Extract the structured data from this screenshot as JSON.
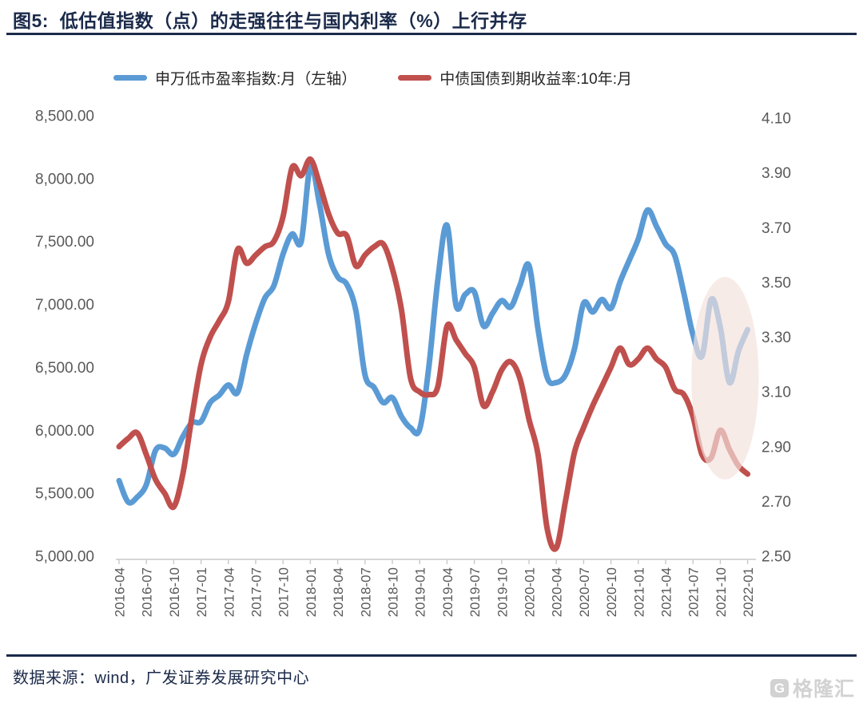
{
  "title": "图5:  低估值指数（点）的走强往往与国内利率（%）上行并存",
  "legend": {
    "items": [
      {
        "label": "申万低市盈率指数:月（左轴）",
        "color": "#5B9BD5"
      },
      {
        "label": "中债国债到期收益率:10年:月",
        "color": "#C0504D"
      }
    ]
  },
  "footer": {
    "text": "数据来源：wind，广发证券发展研究中心"
  },
  "watermark": {
    "logo_letter": "G",
    "text": "格隆汇"
  },
  "colors": {
    "title": "#1b2a4a",
    "rule": "#1b2a4a",
    "axis_label": "#595959",
    "axis_line": "#c9c9c9",
    "index_line": "#5B9BD5",
    "yield_line": "#C0504D",
    "highlight": "#f3e1dd"
  },
  "chart_data": {
    "type": "line",
    "title": "低估值指数（点）的走强往往与国内利率（%）上行并存",
    "x_start": "2016-04",
    "x_frequency": "monthly",
    "x_tick_labels": [
      "2016-04",
      "2016-07",
      "2016-10",
      "2017-01",
      "2017-04",
      "2017-07",
      "2017-10",
      "2018-01",
      "2018-04",
      "2018-07",
      "2018-10",
      "2019-01",
      "2019-04",
      "2019-07",
      "2019-10",
      "2020-01",
      "2020-04",
      "2020-07",
      "2020-10",
      "2021-01",
      "2021-04",
      "2021-07",
      "2021-10",
      "2022-01"
    ],
    "left_axis": {
      "min": 5000,
      "max": 8500,
      "step": 500,
      "tick_labels": [
        "8,500.00",
        "8,000.00",
        "7,500.00",
        "7,000.00",
        "6,500.00",
        "6,000.00",
        "5,500.00",
        "5,000.00"
      ]
    },
    "right_axis": {
      "min": 2.5,
      "max": 4.1,
      "step": 0.2,
      "tick_labels": [
        "4.10",
        "3.90",
        "3.70",
        "3.50",
        "3.30",
        "3.10",
        "2.90",
        "2.70",
        "2.50"
      ]
    },
    "grid": false,
    "legend_position": "top",
    "series": [
      {
        "name": "申万低市盈率指数:月（左轴）",
        "axis": "left",
        "color": "#5B9BD5",
        "values": [
          5600,
          5430,
          5470,
          5570,
          5840,
          5860,
          5810,
          5950,
          6060,
          6070,
          6220,
          6280,
          6360,
          6300,
          6600,
          6850,
          7050,
          7150,
          7400,
          7560,
          7500,
          8100,
          7800,
          7400,
          7220,
          7160,
          6950,
          6440,
          6340,
          6220,
          6260,
          6110,
          6020,
          6010,
          6500,
          7200,
          7630,
          6990,
          7080,
          7100,
          6830,
          6930,
          7030,
          6980,
          7150,
          7310,
          6800,
          6420,
          6380,
          6440,
          6650,
          7010,
          6940,
          7040,
          6970,
          7180,
          7350,
          7520,
          7750,
          7620,
          7480,
          7390,
          7090,
          6760,
          6590,
          7040,
          6820,
          6380,
          6630,
          6800
        ]
      },
      {
        "name": "中债国债到期收益率:10年:月",
        "axis": "right",
        "color": "#C0504D",
        "values": [
          2.9,
          2.93,
          2.95,
          2.87,
          2.78,
          2.73,
          2.68,
          2.8,
          3.01,
          3.2,
          3.3,
          3.36,
          3.43,
          3.62,
          3.57,
          3.6,
          3.63,
          3.65,
          3.74,
          3.92,
          3.89,
          3.95,
          3.86,
          3.75,
          3.68,
          3.67,
          3.56,
          3.6,
          3.63,
          3.64,
          3.55,
          3.4,
          3.15,
          3.1,
          3.09,
          3.12,
          3.34,
          3.29,
          3.24,
          3.19,
          3.05,
          3.1,
          3.18,
          3.21,
          3.15,
          3.0,
          2.87,
          2.6,
          2.53,
          2.7,
          2.88,
          2.97,
          3.05,
          3.12,
          3.19,
          3.26,
          3.2,
          3.22,
          3.26,
          3.22,
          3.19,
          3.11,
          3.09,
          3.01,
          2.87,
          2.86,
          2.96,
          2.89,
          2.83,
          2.8
        ]
      }
    ],
    "annotations": [
      {
        "type": "ellipse-highlight",
        "x_range": [
          "2021-07",
          "2022-01"
        ],
        "right_axis_y_range": [
          2.78,
          3.52
        ]
      }
    ]
  }
}
